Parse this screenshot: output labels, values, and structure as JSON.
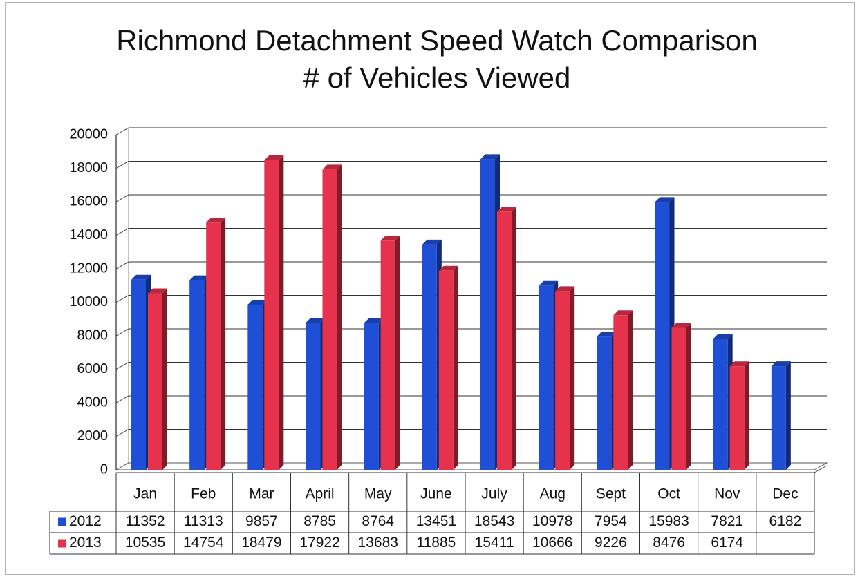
{
  "chart_data": {
    "type": "bar",
    "title": "Richmond Detachment Speed Watch Comparison",
    "subtitle": "# of Vehicles Viewed",
    "categories": [
      "Jan",
      "Feb",
      "Mar",
      "April",
      "May",
      "June",
      "July",
      "Aug",
      "Sept",
      "Oct",
      "Nov",
      "Dec"
    ],
    "series": [
      {
        "name": "2012",
        "color": "#1f4fd6",
        "values": [
          11352,
          11313,
          9857,
          8785,
          8764,
          13451,
          18543,
          10978,
          7954,
          15983,
          7821,
          6182
        ]
      },
      {
        "name": "2013",
        "color": "#e6324c",
        "values": [
          10535,
          14754,
          18479,
          17922,
          13683,
          11885,
          15411,
          10666,
          9226,
          8476,
          6174,
          null
        ]
      }
    ],
    "ylim": [
      0,
      20000
    ],
    "yticks": [
      0,
      2000,
      4000,
      6000,
      8000,
      10000,
      12000,
      14000,
      16000,
      18000,
      20000
    ],
    "grid": true
  }
}
